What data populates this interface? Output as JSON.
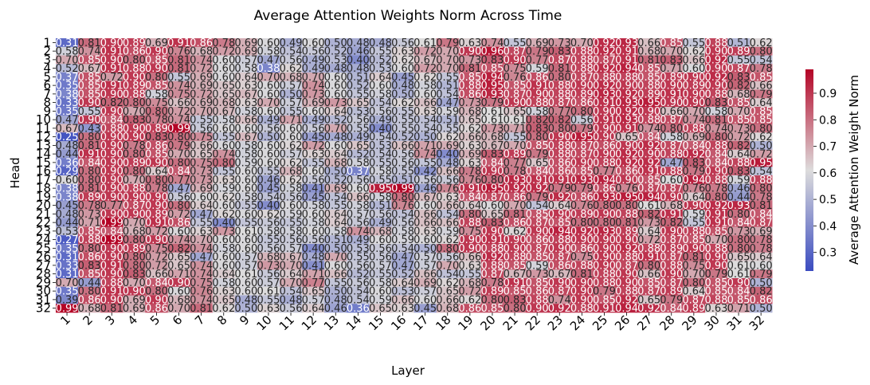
{
  "chart_data": {
    "type": "heatmap",
    "title": "Average Attention Weights Norm Across Time",
    "xlabel": "Layer",
    "ylabel": "Head",
    "colorbar_label": "Average Attention Weight Norm",
    "colormap": "coolwarm",
    "colormap_low": "#3b4cc0",
    "colormap_mid": "#dddcdc",
    "colormap_high": "#b40426",
    "value_range": [
      0.23,
      0.99
    ],
    "colorbar_ticks": [
      "0.3",
      "0.4",
      "0.5",
      "0.6",
      "0.7",
      "0.8",
      "0.9"
    ],
    "x_ticks": [
      "1",
      "2",
      "3",
      "4",
      "5",
      "6",
      "7",
      "8",
      "9",
      "10",
      "11",
      "12",
      "13",
      "14",
      "15",
      "16",
      "17",
      "18",
      "19",
      "20",
      "21",
      "22",
      "23",
      "24",
      "25",
      "26",
      "27",
      "28",
      "29",
      "30",
      "31",
      "32"
    ],
    "y_ticks": [
      "1",
      "2",
      "3",
      "4",
      "5",
      "6",
      "7",
      "8",
      "9",
      "10",
      "11",
      "12",
      "13",
      "14",
      "15",
      "16",
      "17",
      "18",
      "19",
      "20",
      "21",
      "22",
      "23",
      "24",
      "25",
      "26",
      "27",
      "28",
      "29",
      "30",
      "31",
      "32"
    ],
    "annotation_format": "2 decimals",
    "values": [
      [
        0.31,
        0.81,
        0.9,
        0.89,
        0.69,
        0.91,
        0.86,
        0.78,
        0.69,
        0.6,
        0.49,
        0.6,
        0.5,
        0.48,
        0.48,
        0.56,
        0.61,
        0.79,
        0.63,
        0.74,
        0.55,
        0.69,
        0.73,
        0.7,
        0.92,
        0.93,
        0.66,
        0.85,
        0.55,
        0.88,
        0.51,
        0.62
      ],
      [
        0.58,
        0.74,
        0.91,
        0.86,
        0.9,
        0.76,
        0.68,
        0.72,
        0.69,
        0.58,
        0.54,
        0.56,
        0.52,
        0.46,
        0.55,
        0.63,
        0.72,
        0.7,
        0.9,
        0.96,
        0.87,
        0.79,
        0.83,
        0.88,
        0.92,
        0.91,
        0.68,
        0.7,
        0.62,
        0.9,
        0.89,
        0.8
      ],
      [
        0.7,
        0.85,
        0.9,
        0.8,
        0.85,
        0.81,
        0.74,
        0.6,
        0.57,
        0.47,
        0.56,
        0.49,
        0.53,
        0.4,
        0.52,
        0.62,
        0.67,
        0.7,
        0.73,
        0.83,
        0.9,
        0.77,
        0.87,
        0.88,
        0.87,
        0.91,
        0.81,
        0.83,
        0.66,
        0.92,
        0.55,
        0.54
      ],
      [
        0.52,
        0.67,
        0.91,
        0.88,
        0.9,
        0.81,
        0.72,
        0.6,
        0.58,
        0.38,
        0.62,
        0.49,
        0.48,
        0.48,
        0.53,
        0.6,
        0.72,
        0.7,
        0.81,
        0.85,
        0.75,
        0.59,
        0.81,
        0.88,
        0.92,
        0.94,
        0.85,
        0.71,
        0.6,
        0.9,
        0.87,
        0.78
      ],
      [
        0.37,
        0.85,
        0.72,
        0.9,
        0.8,
        0.55,
        0.69,
        0.6,
        0.64,
        0.7,
        0.68,
        0.7,
        0.6,
        0.51,
        0.64,
        0.45,
        0.62,
        0.55,
        0.85,
        0.94,
        0.76,
        0.86,
        0.8,
        0.87,
        0.88,
        0.88,
        0.85,
        0.89,
        0.9,
        0.92,
        0.83,
        0.85
      ],
      [
        0.35,
        0.85,
        0.91,
        0.89,
        0.85,
        0.74,
        0.69,
        0.65,
        0.63,
        0.6,
        0.57,
        0.74,
        0.6,
        0.52,
        0.6,
        0.48,
        0.58,
        0.51,
        0.88,
        0.95,
        0.85,
        0.91,
        0.88,
        0.9,
        0.92,
        0.9,
        0.88,
        0.9,
        0.89,
        0.9,
        0.82,
        0.66
      ],
      [
        0.38,
        0.85,
        0.9,
        0.88,
        0.58,
        0.75,
        0.72,
        0.65,
        0.67,
        0.6,
        0.5,
        0.73,
        0.6,
        0.55,
        0.58,
        0.5,
        0.6,
        0.54,
        0.86,
        0.93,
        0.87,
        0.9,
        0.88,
        0.89,
        0.93,
        0.92,
        0.89,
        0.91,
        0.9,
        0.88,
        0.68,
        0.79
      ],
      [
        0.33,
        0.9,
        0.82,
        0.8,
        0.75,
        0.66,
        0.69,
        0.68,
        0.63,
        0.7,
        0.57,
        0.69,
        0.73,
        0.65,
        0.54,
        0.62,
        0.66,
        0.47,
        0.73,
        0.79,
        0.9,
        0.88,
        0.87,
        0.86,
        0.91,
        0.93,
        0.95,
        0.9,
        0.9,
        0.83,
        0.85,
        0.64
      ],
      [
        0.35,
        0.55,
        0.9,
        0.7,
        0.8,
        0.72,
        0.7,
        0.67,
        0.58,
        0.6,
        0.55,
        0.6,
        0.64,
        0.53,
        0.56,
        0.55,
        0.63,
        0.59,
        0.68,
        0.61,
        0.65,
        0.58,
        0.77,
        0.8,
        0.9,
        0.92,
        0.9,
        0.66,
        0.7,
        0.58,
        0.7,
        0.85
      ],
      [
        0.47,
        0.9,
        0.84,
        0.83,
        0.78,
        0.74,
        0.55,
        0.58,
        0.66,
        0.49,
        0.71,
        0.49,
        0.52,
        0.56,
        0.49,
        0.55,
        0.54,
        0.51,
        0.65,
        0.61,
        0.61,
        0.82,
        0.82,
        0.56,
        0.91,
        0.93,
        0.88,
        0.87,
        0.74,
        0.81,
        0.85,
        0.85
      ],
      [
        0.67,
        0.43,
        0.88,
        0.9,
        0.89,
        0.99,
        0.56,
        0.6,
        0.6,
        0.56,
        0.6,
        0.56,
        0.7,
        0.55,
        0.4,
        0.55,
        0.54,
        0.55,
        0.62,
        0.73,
        0.71,
        0.83,
        0.8,
        0.79,
        0.9,
        0.91,
        0.74,
        0.8,
        0.88,
        0.74,
        0.73,
        0.8
      ],
      [
        0.25,
        0.8,
        0.9,
        0.9,
        0.83,
        0.8,
        0.75,
        0.55,
        0.67,
        0.5,
        0.6,
        0.45,
        0.48,
        0.49,
        0.54,
        0.52,
        0.5,
        0.62,
        0.66,
        0.68,
        0.55,
        0.8,
        0.9,
        0.95,
        0.9,
        0.65,
        0.84,
        0.58,
        0.69,
        0.8,
        0.72,
        0.62
      ],
      [
        0.48,
        0.81,
        0.9,
        0.78,
        0.86,
        0.79,
        0.66,
        0.6,
        0.58,
        0.6,
        0.62,
        0.72,
        0.6,
        0.65,
        0.53,
        0.66,
        0.71,
        0.69,
        0.63,
        0.67,
        0.7,
        0.85,
        0.88,
        0.87,
        0.86,
        0.9,
        0.92,
        0.87,
        0.84,
        0.88,
        0.82,
        0.5
      ],
      [
        0.44,
        0.91,
        0.9,
        0.8,
        0.85,
        0.7,
        0.65,
        0.74,
        0.58,
        0.6,
        0.57,
        0.63,
        0.64,
        0.52,
        0.54,
        0.56,
        0.74,
        0.4,
        0.69,
        0.83,
        0.89,
        0.79,
        0.88,
        0.87,
        0.9,
        0.92,
        0.9,
        0.88,
        0.92,
        0.84,
        0.64,
        0.72
      ],
      [
        0.36,
        0.84,
        0.9,
        0.89,
        0.9,
        0.8,
        0.75,
        0.8,
        0.59,
        0.6,
        0.62,
        0.55,
        0.68,
        0.58,
        0.55,
        0.56,
        0.55,
        0.48,
        0.63,
        0.84,
        0.77,
        0.65,
        0.86,
        0.9,
        0.88,
        0.92,
        0.92,
        0.47,
        0.83,
        0.84,
        0.88,
        0.95
      ],
      [
        0.29,
        0.8,
        0.9,
        0.8,
        0.64,
        0.84,
        0.73,
        0.55,
        0.6,
        0.55,
        0.68,
        0.6,
        0.5,
        0.37,
        0.58,
        0.55,
        0.42,
        0.66,
        0.78,
        0.9,
        0.78,
        0.84,
        0.86,
        0.85,
        0.77,
        0.86,
        0.91,
        0.88,
        0.79,
        0.9,
        0.83,
        0.54
      ],
      [
        0.6,
        0.8,
        0.9,
        0.7,
        0.8,
        0.77,
        0.73,
        0.63,
        0.6,
        0.46,
        0.62,
        0.56,
        0.52,
        0.56,
        0.55,
        0.51,
        0.56,
        0.56,
        0.76,
        0.8,
        0.93,
        0.91,
        0.91,
        0.93,
        0.94,
        0.9,
        0.85,
        0.6,
        0.94,
        0.88,
        0.59,
        0.88
      ],
      [
        0.38,
        0.81,
        0.9,
        0.88,
        0.78,
        0.47,
        0.69,
        0.59,
        0.6,
        0.45,
        0.58,
        0.41,
        0.69,
        0.6,
        0.95,
        0.99,
        0.46,
        0.76,
        0.91,
        0.95,
        0.92,
        0.92,
        0.79,
        0.79,
        0.86,
        0.76,
        0.87,
        0.87,
        0.76,
        0.78,
        0.46,
        0.8
      ],
      [
        0.38,
        0.89,
        0.9,
        0.9,
        0.9,
        0.56,
        0.6,
        0.62,
        0.58,
        0.54,
        0.56,
        0.45,
        0.54,
        0.66,
        0.58,
        0.8,
        0.67,
        0.63,
        0.84,
        0.87,
        0.86,
        0.79,
        0.92,
        0.86,
        0.93,
        0.95,
        0.94,
        0.9,
        0.64,
        0.8,
        0.44,
        0.78
      ],
      [
        0.45,
        0.78,
        0.77,
        0.87,
        0.9,
        0.8,
        0.64,
        0.6,
        0.55,
        0.4,
        0.6,
        0.58,
        0.55,
        0.58,
        0.51,
        0.76,
        0.6,
        0.66,
        0.64,
        0.6,
        0.7,
        0.54,
        0.64,
        0.76,
        0.8,
        0.8,
        0.61,
        0.68,
        0.9,
        0.92,
        0.93,
        0.81
      ],
      [
        0.48,
        0.73,
        0.9,
        0.9,
        0.89,
        0.72,
        0.47,
        0.62,
        0.6,
        0.62,
        0.59,
        0.6,
        0.64,
        0.57,
        0.56,
        0.54,
        0.66,
        0.54,
        0.8,
        0.65,
        0.81,
        0.85,
        0.9,
        0.89,
        0.9,
        0.88,
        0.82,
        0.91,
        0.59,
        0.91,
        0.8,
        0.84
      ],
      [
        0.44,
        0.71,
        0.99,
        0.7,
        0.91,
        0.86,
        0.55,
        0.4,
        0.55,
        0.56,
        0.55,
        0.58,
        0.64,
        0.56,
        0.49,
        0.56,
        0.66,
        0.66,
        0.88,
        0.83,
        0.86,
        0.87,
        0.85,
        0.8,
        0.8,
        0.81,
        0.73,
        0.82,
        0.55,
        0.91,
        0.84,
        0.87
      ],
      [
        0.53,
        0.85,
        0.84,
        0.68,
        0.72,
        0.6,
        0.63,
        0.73,
        0.61,
        0.58,
        0.58,
        0.6,
        0.58,
        0.74,
        0.68,
        0.58,
        0.63,
        0.59,
        0.75,
        0.9,
        0.62,
        0.9,
        0.94,
        0.92,
        0.93,
        0.89,
        0.64,
        0.9,
        0.88,
        0.85,
        0.73,
        0.69
      ],
      [
        0.27,
        0.88,
        0.99,
        0.8,
        0.9,
        0.74,
        0.7,
        0.6,
        0.6,
        0.55,
        0.56,
        0.56,
        0.51,
        0.49,
        0.6,
        0.59,
        0.6,
        0.62,
        0.9,
        0.91,
        0.9,
        0.86,
        0.88,
        0.9,
        0.9,
        0.9,
        0.72,
        0.87,
        0.85,
        0.7,
        0.8,
        0.78
      ],
      [
        0.35,
        0.8,
        0.9,
        0.89,
        0.75,
        0.82,
        0.74,
        0.58,
        0.6,
        0.56,
        0.57,
        0.4,
        0.5,
        0.53,
        0.56,
        0.54,
        0.5,
        0.8,
        0.9,
        0.88,
        0.9,
        0.87,
        0.9,
        0.86,
        0.9,
        0.92,
        0.88,
        0.89,
        0.9,
        0.88,
        0.8,
        0.78
      ],
      [
        0.31,
        0.86,
        0.9,
        0.8,
        0.72,
        0.65,
        0.47,
        0.6,
        0.57,
        0.68,
        0.67,
        0.48,
        0.7,
        0.55,
        0.56,
        0.47,
        0.57,
        0.56,
        0.66,
        0.92,
        0.88,
        0.85,
        0.87,
        0.75,
        0.9,
        0.88,
        0.91,
        0.87,
        0.81,
        0.9,
        0.65,
        0.64
      ],
      [
        0.33,
        0.83,
        0.91,
        0.8,
        0.72,
        0.65,
        0.74,
        0.6,
        0.57,
        0.73,
        0.7,
        0.41,
        0.6,
        0.56,
        0.57,
        0.47,
        0.57,
        0.7,
        0.63,
        0.88,
        0.85,
        0.59,
        0.86,
        0.88,
        0.9,
        0.87,
        0.8,
        0.88,
        0.75,
        0.9,
        0.61,
        0.6
      ],
      [
        0.31,
        0.85,
        0.9,
        0.83,
        0.66,
        0.71,
        0.74,
        0.64,
        0.61,
        0.56,
        0.64,
        0.71,
        0.66,
        0.52,
        0.55,
        0.52,
        0.66,
        0.54,
        0.55,
        0.87,
        0.67,
        0.73,
        0.67,
        0.81,
        0.88,
        0.9,
        0.66,
        0.9,
        0.7,
        0.79,
        0.61,
        0.79
      ],
      [
        0.7,
        0.44,
        0.88,
        0.7,
        0.84,
        0.9,
        0.75,
        0.58,
        0.6,
        0.57,
        0.7,
        0.77,
        0.55,
        0.56,
        0.58,
        0.64,
        0.69,
        0.62,
        0.68,
        0.78,
        0.91,
        0.85,
        0.9,
        0.9,
        0.88,
        0.9,
        0.85,
        0.87,
        0.8,
        0.85,
        0.9,
        0.5
      ],
      [
        0.35,
        0.8,
        0.91,
        0.9,
        0.8,
        0.6,
        0.76,
        0.63,
        0.6,
        0.61,
        0.54,
        0.65,
        0.5,
        0.54,
        0.6,
        0.53,
        0.57,
        0.65,
        0.72,
        0.89,
        0.85,
        0.86,
        0.87,
        0.9,
        0.79,
        0.88,
        0.87,
        0.89,
        0.64,
        0.85,
        0.84,
        0.82
      ],
      [
        0.39,
        0.86,
        0.9,
        0.69,
        0.9,
        0.68,
        0.74,
        0.65,
        0.48,
        0.55,
        0.48,
        0.57,
        0.48,
        0.54,
        0.59,
        0.66,
        0.6,
        0.66,
        0.62,
        0.8,
        0.83,
        0.88,
        0.74,
        0.9,
        0.85,
        0.92,
        0.65,
        0.79,
        0.87,
        0.88,
        0.85,
        0.86
      ],
      [
        0.99,
        0.68,
        0.81,
        0.69,
        0.86,
        0.7,
        0.81,
        0.62,
        0.5,
        0.63,
        0.56,
        0.64,
        0.46,
        0.36,
        0.65,
        0.63,
        0.45,
        0.68,
        0.86,
        0.85,
        0.8,
        0.9,
        0.92,
        0.88,
        0.91,
        0.94,
        0.92,
        0.84,
        0.89,
        0.63,
        0.71,
        0.5
      ]
    ]
  }
}
